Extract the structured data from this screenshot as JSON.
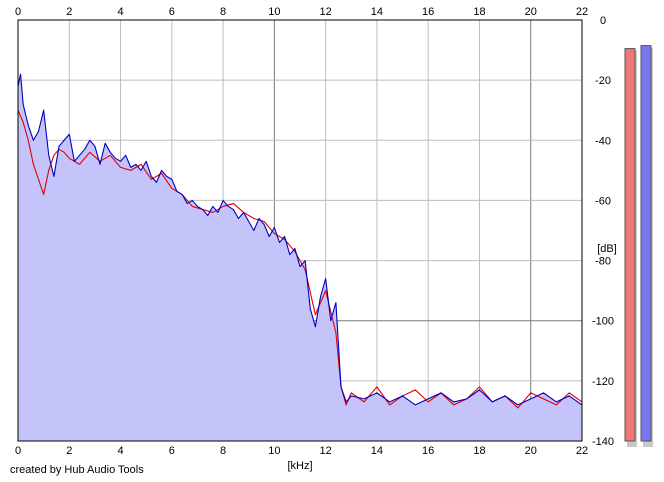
{
  "chart_data": {
    "type": "area",
    "title": "",
    "xlabel": "[kHz]",
    "ylabel": "[dB]",
    "xlim": [
      0,
      22
    ],
    "ylim": [
      -140,
      0
    ],
    "x_ticks": [
      0,
      2,
      4,
      6,
      8,
      10,
      12,
      14,
      16,
      18,
      20,
      22
    ],
    "y_ticks": [
      0,
      -20,
      -40,
      -60,
      -80,
      -100,
      -120,
      -140
    ],
    "grid": true,
    "series": [
      {
        "name": "",
        "color": "#0000c0",
        "x": [
          0,
          0.1,
          0.2,
          0.4,
          0.6,
          0.8,
          1,
          1.2,
          1.4,
          1.6,
          1.8,
          2,
          2.2,
          2.4,
          2.6,
          2.8,
          3,
          3.2,
          3.4,
          3.6,
          3.8,
          4,
          4.2,
          4.4,
          4.6,
          4.8,
          5,
          5.2,
          5.4,
          5.6,
          5.8,
          6,
          6.2,
          6.4,
          6.6,
          6.8,
          7,
          7.2,
          7.4,
          7.6,
          7.8,
          8,
          8.2,
          8.4,
          8.6,
          8.8,
          9,
          9.2,
          9.4,
          9.6,
          9.8,
          10,
          10.2,
          10.4,
          10.6,
          10.8,
          11,
          11.2,
          11.4,
          11.6,
          11.8,
          12,
          12.2,
          12.4,
          12.6,
          12.8,
          13,
          13.5,
          14,
          14.5,
          15,
          15.5,
          16,
          16.5,
          17,
          17.5,
          18,
          18.5,
          19,
          19.5,
          20,
          20.5,
          21,
          21.5,
          22
        ],
        "values": [
          -22,
          -18,
          -28,
          -35,
          -40,
          -37,
          -30,
          -45,
          -52,
          -42,
          -40,
          -38,
          -47,
          -45,
          -43,
          -40,
          -42,
          -48,
          -41,
          -44,
          -46,
          -47,
          -45,
          -49,
          -48,
          -50,
          -47,
          -52,
          -54,
          -50,
          -52,
          -53,
          -57,
          -58,
          -61,
          -60,
          -62,
          -63,
          -65,
          -62,
          -64,
          -60,
          -62,
          -63,
          -66,
          -64,
          -67,
          -70,
          -66,
          -68,
          -72,
          -69,
          -74,
          -72,
          -78,
          -76,
          -82,
          -80,
          -96,
          -102,
          -92,
          -86,
          -100,
          -94,
          -122,
          -127,
          -125,
          -126,
          -124,
          -127,
          -125,
          -128,
          -126,
          -124,
          -127,
          -126,
          -123,
          -127,
          -125,
          -128,
          -126,
          -124,
          -127,
          -125,
          -128
        ]
      },
      {
        "name": "",
        "color": "#e00000",
        "x": [
          0,
          0.2,
          0.4,
          0.6,
          0.8,
          1,
          1.2,
          1.4,
          1.6,
          1.8,
          2,
          2.4,
          2.8,
          3.2,
          3.6,
          4,
          4.4,
          4.8,
          5.2,
          5.6,
          6,
          6.4,
          6.8,
          7.2,
          7.6,
          8,
          8.4,
          8.8,
          9.2,
          9.6,
          10,
          10.4,
          10.8,
          11.2,
          11.6,
          12,
          12.4,
          12.6,
          12.8,
          13,
          13.5,
          14,
          14.5,
          15,
          15.5,
          16,
          16.5,
          17,
          17.5,
          18,
          18.5,
          19,
          19.5,
          20,
          20.5,
          21,
          21.5,
          22
        ],
        "values": [
          -30,
          -34,
          -40,
          -48,
          -53,
          -58,
          -50,
          -45,
          -43,
          -44,
          -46,
          -48,
          -44,
          -47,
          -45,
          -49,
          -50,
          -48,
          -53,
          -51,
          -56,
          -58,
          -62,
          -63,
          -64,
          -62,
          -61,
          -64,
          -66,
          -67,
          -71,
          -73,
          -77,
          -83,
          -98,
          -90,
          -104,
          -122,
          -128,
          -124,
          -127,
          -122,
          -128,
          -125,
          -123,
          -127,
          -124,
          -128,
          -126,
          -122,
          -127,
          -125,
          -129,
          -124,
          -126,
          -128,
          -124,
          -127
        ]
      }
    ],
    "meters": [
      {
        "name": "",
        "color": "#ee7777",
        "value": -9.5
      },
      {
        "name": "",
        "color": "#7777ee",
        "value": -8.5
      }
    ]
  },
  "footer": {
    "credit": "created by Hub Audio Tools"
  }
}
